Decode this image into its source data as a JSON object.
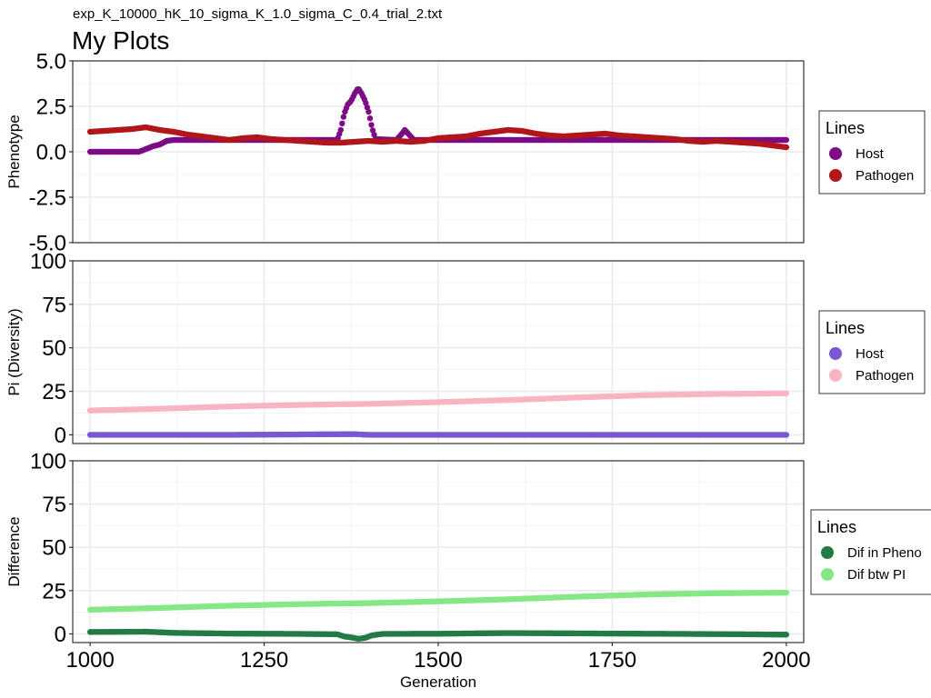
{
  "subtitle": "exp_K_10000_hK_10_sigma_K_1.0_sigma_C_0.4_trial_2.txt",
  "title": "My Plots",
  "xlabel": "Generation",
  "x_ticks": [
    "1000",
    "1250",
    "1500",
    "1750",
    "2000"
  ],
  "chart_data": [
    {
      "type": "scatter",
      "ylabel": "Phenotype",
      "xlim": [
        975,
        2025
      ],
      "ylim": [
        -5.0,
        5.0
      ],
      "x_ticks": [
        1000,
        1250,
        1500,
        1750,
        2000
      ],
      "y_ticks": [
        -5.0,
        -2.5,
        0.0,
        2.5,
        5.0
      ],
      "y_tick_labels": [
        "-5.0",
        "-2.5",
        "0.0",
        "2.5",
        "5.0"
      ],
      "grid": true,
      "legend_title": "Lines",
      "legend_position": "right",
      "series": [
        {
          "name": "Host",
          "color": "#7B0C85",
          "points": [
            [
              1000,
              0.0
            ],
            [
              1050,
              0.0
            ],
            [
              1070,
              0.0
            ],
            [
              1080,
              0.15
            ],
            [
              1090,
              0.3
            ],
            [
              1100,
              0.4
            ],
            [
              1110,
              0.6
            ],
            [
              1120,
              0.65
            ],
            [
              1200,
              0.65
            ],
            [
              1300,
              0.65
            ],
            [
              1355,
              0.65
            ],
            [
              1360,
              1.2
            ],
            [
              1365,
              2.1
            ],
            [
              1370,
              2.6
            ],
            [
              1375,
              2.8
            ],
            [
              1380,
              3.2
            ],
            [
              1385,
              3.5
            ],
            [
              1390,
              3.2
            ],
            [
              1395,
              2.8
            ],
            [
              1400,
              2.2
            ],
            [
              1405,
              1.3
            ],
            [
              1410,
              0.7
            ],
            [
              1440,
              0.65
            ],
            [
              1448,
              1.0
            ],
            [
              1452,
              1.2
            ],
            [
              1458,
              0.95
            ],
            [
              1465,
              0.65
            ],
            [
              1500,
              0.65
            ],
            [
              1600,
              0.65
            ],
            [
              1700,
              0.65
            ],
            [
              1800,
              0.65
            ],
            [
              1900,
              0.65
            ],
            [
              2000,
              0.65
            ]
          ]
        },
        {
          "name": "Pathogen",
          "color": "#B0161A",
          "points": [
            [
              1000,
              1.1
            ],
            [
              1020,
              1.15
            ],
            [
              1040,
              1.2
            ],
            [
              1060,
              1.25
            ],
            [
              1080,
              1.35
            ],
            [
              1100,
              1.2
            ],
            [
              1120,
              1.1
            ],
            [
              1140,
              0.95
            ],
            [
              1160,
              0.85
            ],
            [
              1180,
              0.75
            ],
            [
              1200,
              0.65
            ],
            [
              1220,
              0.75
            ],
            [
              1240,
              0.8
            ],
            [
              1260,
              0.7
            ],
            [
              1280,
              0.65
            ],
            [
              1300,
              0.6
            ],
            [
              1320,
              0.55
            ],
            [
              1340,
              0.5
            ],
            [
              1360,
              0.5
            ],
            [
              1380,
              0.55
            ],
            [
              1400,
              0.6
            ],
            [
              1420,
              0.55
            ],
            [
              1440,
              0.6
            ],
            [
              1460,
              0.55
            ],
            [
              1480,
              0.6
            ],
            [
              1500,
              0.75
            ],
            [
              1520,
              0.8
            ],
            [
              1540,
              0.85
            ],
            [
              1560,
              1.0
            ],
            [
              1580,
              1.1
            ],
            [
              1600,
              1.2
            ],
            [
              1620,
              1.15
            ],
            [
              1640,
              1.0
            ],
            [
              1660,
              0.9
            ],
            [
              1680,
              0.85
            ],
            [
              1700,
              0.9
            ],
            [
              1720,
              0.95
            ],
            [
              1740,
              1.0
            ],
            [
              1760,
              0.9
            ],
            [
              1780,
              0.85
            ],
            [
              1800,
              0.8
            ],
            [
              1820,
              0.75
            ],
            [
              1840,
              0.7
            ],
            [
              1860,
              0.6
            ],
            [
              1880,
              0.55
            ],
            [
              1900,
              0.6
            ],
            [
              1920,
              0.55
            ],
            [
              1940,
              0.5
            ],
            [
              1960,
              0.45
            ],
            [
              1980,
              0.35
            ],
            [
              2000,
              0.25
            ]
          ]
        }
      ]
    },
    {
      "type": "scatter",
      "ylabel": "Pi (Diversity)",
      "xlim": [
        975,
        2025
      ],
      "ylim": [
        -5,
        100
      ],
      "x_ticks": [
        1000,
        1250,
        1500,
        1750,
        2000
      ],
      "y_ticks": [
        0,
        25,
        50,
        75,
        100
      ],
      "y_tick_labels": [
        "0",
        "25",
        "50",
        "75",
        "100"
      ],
      "grid": true,
      "legend_title": "Lines",
      "legend_position": "right",
      "series": [
        {
          "name": "Host",
          "color": "#7B57D6",
          "points": [
            [
              1000,
              0.0
            ],
            [
              1200,
              0.0
            ],
            [
              1380,
              0.4
            ],
            [
              1400,
              0.0
            ],
            [
              1600,
              0.0
            ],
            [
              1800,
              0.0
            ],
            [
              2000,
              0.0
            ]
          ]
        },
        {
          "name": "Pathogen",
          "color": "#F9B4C4",
          "points": [
            [
              1000,
              14.0
            ],
            [
              1100,
              15.0
            ],
            [
              1200,
              16.3
            ],
            [
              1300,
              17.2
            ],
            [
              1400,
              17.8
            ],
            [
              1500,
              18.8
            ],
            [
              1600,
              20.0
            ],
            [
              1700,
              21.5
            ],
            [
              1800,
              22.8
            ],
            [
              1900,
              23.5
            ],
            [
              2000,
              23.8
            ]
          ]
        }
      ]
    },
    {
      "type": "scatter",
      "ylabel": "Difference",
      "xlim": [
        975,
        2025
      ],
      "ylim": [
        -5,
        100
      ],
      "x_ticks": [
        1000,
        1250,
        1500,
        1750,
        2000
      ],
      "y_ticks": [
        0,
        25,
        50,
        75,
        100
      ],
      "y_tick_labels": [
        "0",
        "25",
        "50",
        "75",
        "100"
      ],
      "grid": true,
      "legend_title": "Lines",
      "legend_position": "right",
      "series": [
        {
          "name": "Dif in Pheno",
          "color": "#237A45",
          "points": [
            [
              1000,
              1.1
            ],
            [
              1080,
              1.3
            ],
            [
              1120,
              0.6
            ],
            [
              1200,
              0.2
            ],
            [
              1300,
              0.0
            ],
            [
              1355,
              -0.2
            ],
            [
              1365,
              -1.5
            ],
            [
              1375,
              -2.0
            ],
            [
              1385,
              -2.8
            ],
            [
              1395,
              -2.3
            ],
            [
              1405,
              -0.8
            ],
            [
              1420,
              0.0
            ],
            [
              1500,
              0.1
            ],
            [
              1600,
              0.5
            ],
            [
              1700,
              0.3
            ],
            [
              1800,
              0.1
            ],
            [
              1900,
              -0.1
            ],
            [
              2000,
              -0.4
            ]
          ]
        },
        {
          "name": "Dif btw PI",
          "color": "#86E885",
          "points": [
            [
              1000,
              14.0
            ],
            [
              1100,
              15.0
            ],
            [
              1200,
              16.3
            ],
            [
              1300,
              17.2
            ],
            [
              1400,
              17.8
            ],
            [
              1500,
              18.8
            ],
            [
              1600,
              20.0
            ],
            [
              1700,
              21.5
            ],
            [
              1800,
              22.8
            ],
            [
              1900,
              23.5
            ],
            [
              2000,
              23.8
            ]
          ]
        }
      ]
    }
  ]
}
